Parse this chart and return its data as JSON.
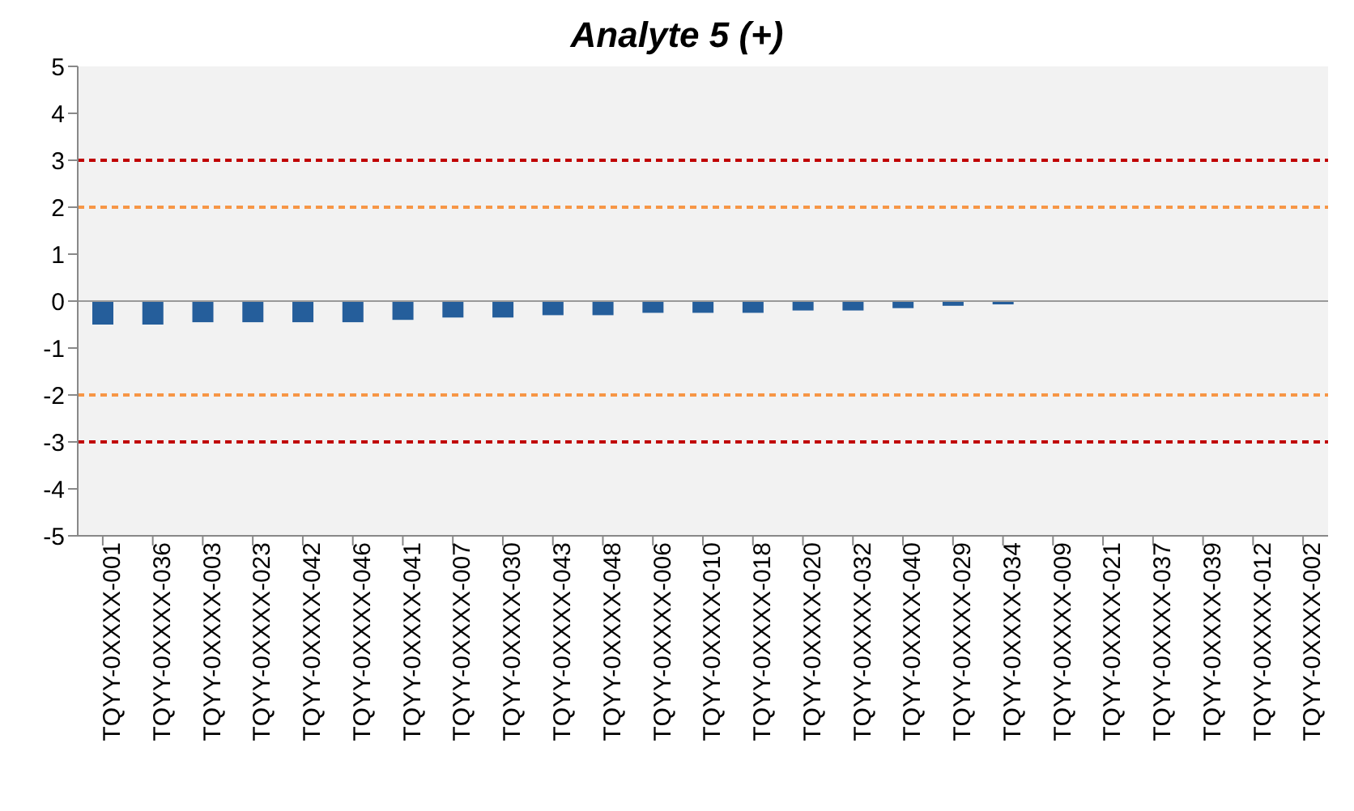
{
  "chart_data": {
    "type": "bar",
    "title": "Analyte 5 (+)",
    "categories": [
      "TQYY-0XXXX-001",
      "TQYY-0XXXX-036",
      "TQYY-0XXXX-003",
      "TQYY-0XXXX-023",
      "TQYY-0XXXX-042",
      "TQYY-0XXXX-046",
      "TQYY-0XXXX-041",
      "TQYY-0XXXX-007",
      "TQYY-0XXXX-030",
      "TQYY-0XXXX-043",
      "TQYY-0XXXX-048",
      "TQYY-0XXXX-006",
      "TQYY-0XXXX-010",
      "TQYY-0XXXX-018",
      "TQYY-0XXXX-020",
      "TQYY-0XXXX-032",
      "TQYY-0XXXX-040",
      "TQYY-0XXXX-029",
      "TQYY-0XXXX-034",
      "TQYY-0XXXX-009",
      "TQYY-0XXXX-021",
      "TQYY-0XXXX-037",
      "TQYY-0XXXX-039",
      "TQYY-0XXXX-012",
      "TQYY-0XXXX-002"
    ],
    "values": [
      -0.5,
      -0.5,
      -0.45,
      -0.45,
      -0.45,
      -0.45,
      -0.4,
      -0.35,
      -0.35,
      -0.3,
      -0.3,
      -0.25,
      -0.25,
      -0.25,
      -0.2,
      -0.2,
      -0.15,
      -0.1,
      -0.07,
      null,
      null,
      null,
      null,
      null,
      null
    ],
    "color": "#255e9b",
    "ylim": [
      -5,
      5
    ],
    "yticks": [
      -5,
      -4,
      -3,
      -2,
      -1,
      0,
      1,
      2,
      3,
      4,
      5
    ],
    "grid": false,
    "ref_lines": [
      {
        "axis": "y",
        "value": 3,
        "color": "#c00000",
        "line_style": "dashed"
      },
      {
        "axis": "y",
        "value": 2,
        "color": "#f79646",
        "line_style": "dashed"
      },
      {
        "axis": "y",
        "value": -2,
        "color": "#f79646",
        "line_style": "dashed"
      },
      {
        "axis": "y",
        "value": -3,
        "color": "#c00000",
        "line_style": "dashed"
      }
    ]
  }
}
